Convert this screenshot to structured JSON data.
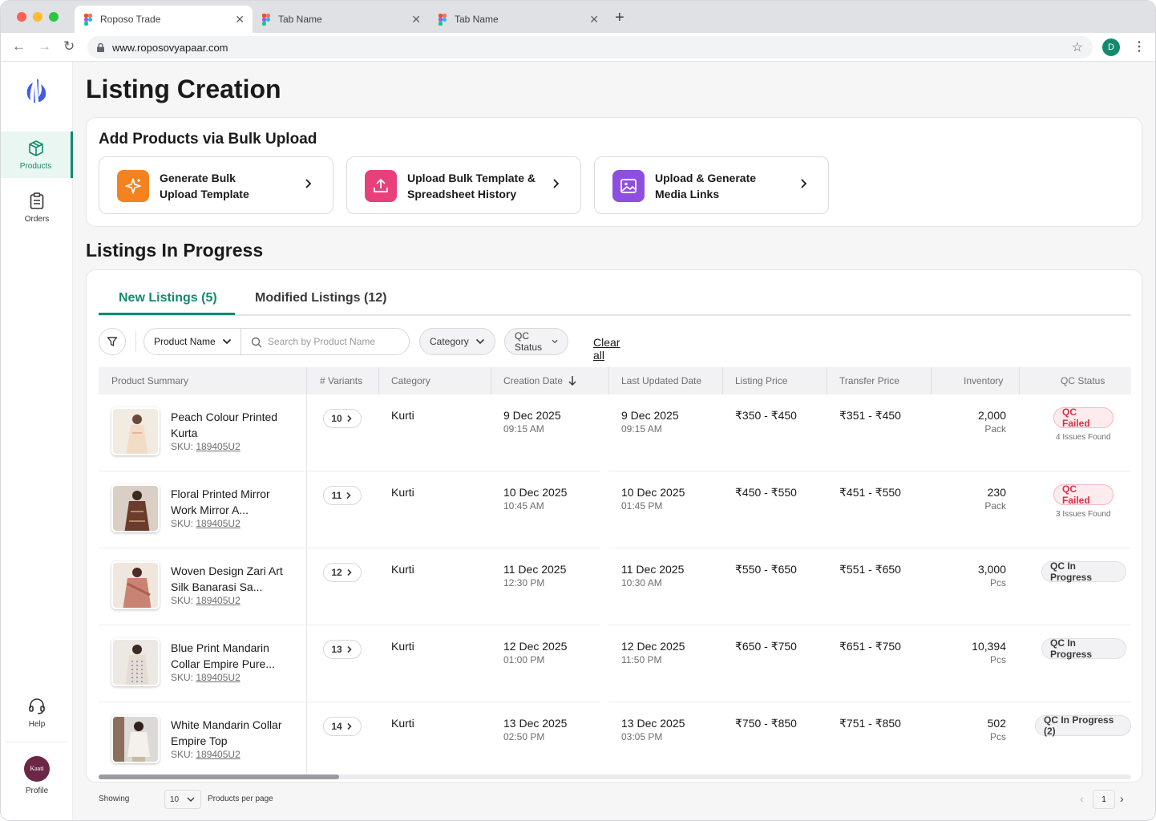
{
  "browser": {
    "tabs": [
      {
        "label": "Roposo Trade"
      },
      {
        "label": "Tab Name"
      },
      {
        "label": "Tab Name"
      }
    ],
    "url": "www.roposovyapaar.com",
    "avatar_initial": "D"
  },
  "sidebar": {
    "items": [
      {
        "label": "Products",
        "icon": "box-icon",
        "active": true
      },
      {
        "label": "Orders",
        "icon": "clipboard-icon",
        "active": false
      }
    ],
    "help_label": "Help",
    "profile_label": "Profile",
    "profile_logo_text": "Kaati"
  },
  "page": {
    "title": "Listing Creation"
  },
  "bulk_upload": {
    "title": "Add Products via Bulk Upload",
    "actions": [
      {
        "line1": "Generate Bulk",
        "line2": "Upload Template",
        "icon": "sparkle-icon",
        "color": "#f5821f"
      },
      {
        "line1": "Upload Bulk Template &",
        "line2": "Spreadsheet History",
        "icon": "upload-icon",
        "color": "#e8407b"
      },
      {
        "line1": "Upload & Generate",
        "line2": "Media Links",
        "icon": "image-icon",
        "color": "#8e4fe0"
      }
    ]
  },
  "listings": {
    "title": "Listings In Progress",
    "tabs": [
      {
        "label": "New Listings (5)",
        "active": true
      },
      {
        "label": "Modified Listings (12)",
        "active": false
      }
    ],
    "filters": {
      "search_field": "Product Name",
      "search_placeholder": "Search by Product Name",
      "category": "Category",
      "qc_status": "QC Status",
      "clear_all": "Clear all"
    },
    "columns": [
      "Product Summary",
      "# Variants",
      "Category",
      "Creation Date",
      "Last Updated Date",
      "Listing Price",
      "Transfer Price",
      "Inventory",
      "QC Status"
    ],
    "rows": [
      {
        "name": "Peach Colour Printed Kurta",
        "sku_label": "SKU:",
        "sku": "189405U2",
        "variants": "10",
        "category": "Kurti",
        "created_date": "9 Dec 2025",
        "created_time": "09:15 AM",
        "updated_date": "9 Dec 2025",
        "updated_time": "09:15 AM",
        "listing_price": "₹350 - ₹450",
        "transfer_price": "₹351 - ₹450",
        "inventory": "2,000",
        "unit": "Pack",
        "qc": "QC Failed",
        "qc_type": "failed",
        "issues": "4 Issues Found"
      },
      {
        "name": "Floral Printed Mirror Work Mirror A...",
        "sku_label": "SKU:",
        "sku": "189405U2",
        "variants": "11",
        "category": "Kurti",
        "created_date": "10 Dec 2025",
        "created_time": "10:45 AM",
        "updated_date": "10 Dec 2025",
        "updated_time": "01:45 PM",
        "listing_price": "₹450 - ₹550",
        "transfer_price": "₹451 - ₹550",
        "inventory": "230",
        "unit": "Pack",
        "qc": "QC Failed",
        "qc_type": "failed",
        "issues": "3 Issues Found"
      },
      {
        "name": "Woven Design Zari Art Silk Banarasi Sa...",
        "sku_label": "SKU:",
        "sku": "189405U2",
        "variants": "12",
        "category": "Kurti",
        "created_date": "11 Dec 2025",
        "created_time": "12:30 PM",
        "updated_date": "11 Dec 2025",
        "updated_time": "10:30 AM",
        "listing_price": "₹550 - ₹650",
        "transfer_price": "₹551 - ₹650",
        "inventory": "3,000",
        "unit": "Pcs",
        "qc": "QC In Progress",
        "qc_type": "progress",
        "issues": ""
      },
      {
        "name": "Blue Print Mandarin Collar Empire Pure...",
        "sku_label": "SKU:",
        "sku": "189405U2",
        "variants": "13",
        "category": "Kurti",
        "created_date": "12 Dec 2025",
        "created_time": "01:00 PM",
        "updated_date": "12 Dec 2025",
        "updated_time": "11:50 PM",
        "listing_price": "₹650 - ₹750",
        "transfer_price": "₹651 - ₹750",
        "inventory": "10,394",
        "unit": "Pcs",
        "qc": "QC In Progress",
        "qc_type": "progress",
        "issues": ""
      },
      {
        "name": "White Mandarin Collar Empire Top",
        "sku_label": "SKU:",
        "sku": "189405U2",
        "variants": "14",
        "category": "Kurti",
        "created_date": "13 Dec 2025",
        "created_time": "02:50 PM",
        "updated_date": "13 Dec 2025",
        "updated_time": "03:05 PM",
        "listing_price": "₹750 - ₹850",
        "transfer_price": "₹751 - ₹850",
        "inventory": "502",
        "unit": "Pcs",
        "qc": "QC In Progress (2)",
        "qc_type": "progress",
        "issues": ""
      }
    ]
  },
  "pagination": {
    "showing_label": "Showing",
    "per_page_value": "10",
    "per_page_label": "Products per page",
    "current_page": "1"
  },
  "colors": {
    "accent": "#138a6e",
    "failed": "#d6304a"
  }
}
